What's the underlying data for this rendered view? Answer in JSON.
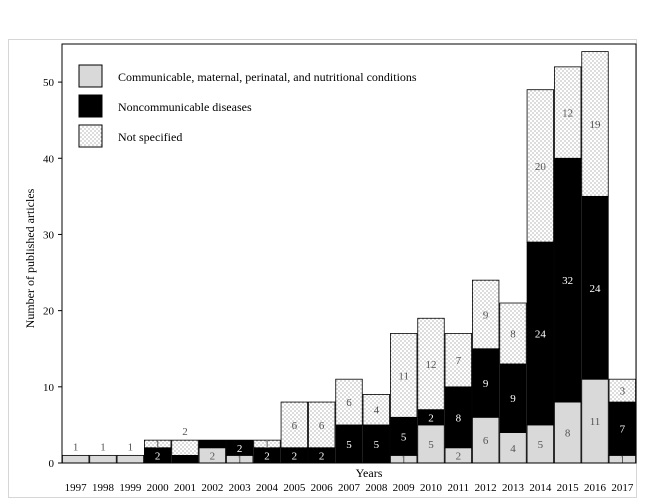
{
  "chart_data": {
    "type": "bar",
    "stacked": true,
    "xlabel": "Years",
    "ylabel": "Number of published articles",
    "ylim": [
      0,
      55
    ],
    "yticks": [
      0,
      10,
      20,
      30,
      40,
      50
    ],
    "grid": false,
    "legend_position": "top-left",
    "categories": [
      "1997",
      "1998",
      "1999",
      "2000",
      "2001",
      "2002",
      "2003",
      "2004",
      "2005",
      "2006",
      "2007",
      "2008",
      "2009",
      "2010",
      "2011",
      "2012",
      "2013",
      "2014",
      "2015",
      "2016",
      "2017"
    ],
    "series": [
      {
        "name": "Communicable, maternal, perinatal, and nutritional conditions",
        "pattern": "light-gray",
        "color": "#d9d9d9",
        "values": [
          1,
          1,
          1,
          0,
          0,
          2,
          1,
          0,
          0,
          0,
          0,
          0,
          1,
          5,
          2,
          6,
          4,
          5,
          8,
          11,
          1
        ],
        "labels": [
          "",
          "",
          "",
          "",
          "",
          "2",
          "1",
          "",
          "",
          "",
          "",
          "",
          "1",
          "5",
          "2",
          "6",
          "4",
          "5",
          "8",
          "11",
          "1"
        ]
      },
      {
        "name": "Noncommunicable diseases",
        "pattern": "black",
        "color": "#000000",
        "values": [
          0,
          0,
          0,
          2,
          1,
          1,
          2,
          2,
          2,
          2,
          5,
          5,
          5,
          2,
          8,
          9,
          9,
          24,
          32,
          24,
          7
        ],
        "labels": [
          "",
          "",
          "",
          "2",
          "",
          "",
          "2",
          "2",
          "2",
          "2",
          "5",
          "5",
          "5",
          "2",
          "8",
          "9",
          "9",
          "24",
          "32",
          "24",
          "7"
        ]
      },
      {
        "name": "Not specified",
        "pattern": "dotted",
        "color": "#ffffff",
        "values": [
          0,
          0,
          0,
          1,
          2,
          0,
          0,
          1,
          6,
          6,
          6,
          4,
          11,
          12,
          7,
          9,
          8,
          20,
          12,
          19,
          3
        ],
        "labels": [
          "",
          "",
          "",
          "1",
          "",
          "",
          "",
          "1",
          "6",
          "6",
          "6",
          "4",
          "11",
          "12",
          "7",
          "9",
          "8",
          "20",
          "12",
          "19",
          "3"
        ]
      }
    ],
    "top_labels": [
      "1",
      "1",
      "1",
      "",
      "2",
      "",
      "",
      "",
      "",
      "",
      "",
      "",
      "",
      "",
      "",
      "",
      "",
      "",
      "",
      "",
      ""
    ]
  }
}
